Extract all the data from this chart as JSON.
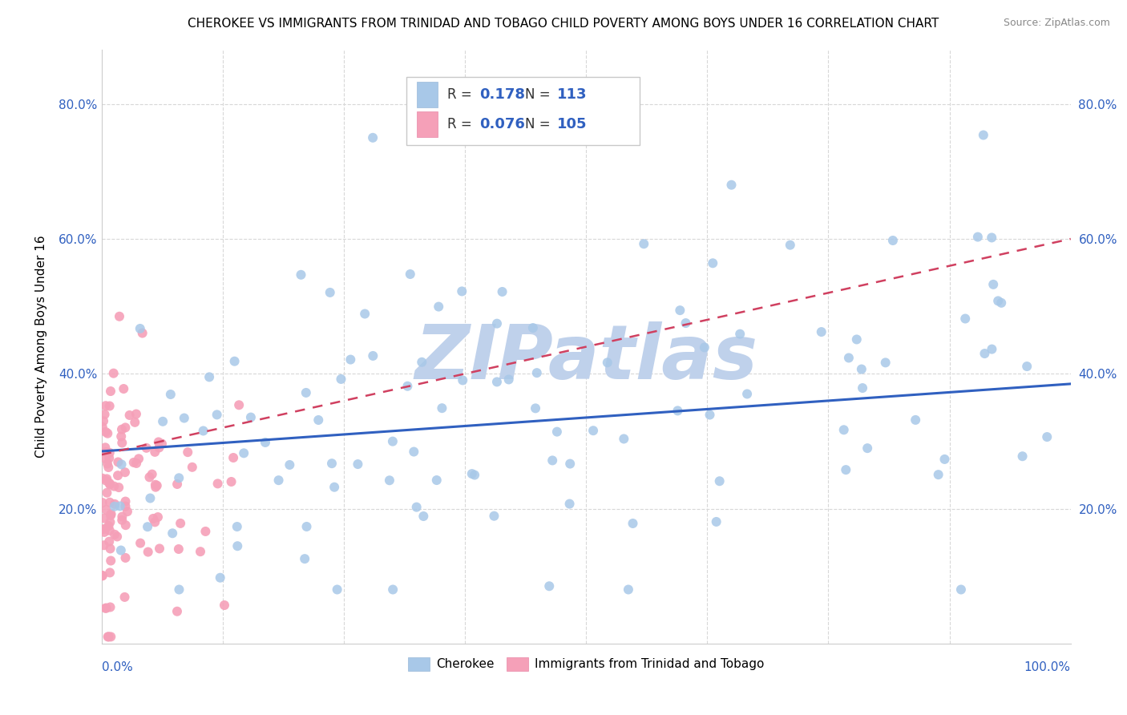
{
  "title": "CHEROKEE VS IMMIGRANTS FROM TRINIDAD AND TOBAGO CHILD POVERTY AMONG BOYS UNDER 16 CORRELATION CHART",
  "source": "Source: ZipAtlas.com",
  "ylabel": "Child Poverty Among Boys Under 16",
  "xlim": [
    0.0,
    1.0
  ],
  "ylim": [
    0.0,
    0.88
  ],
  "cherokee_R": 0.178,
  "cherokee_N": 113,
  "immigrant_R": 0.076,
  "immigrant_N": 105,
  "cherokee_color": "#a8c8e8",
  "immigrant_color": "#f5a0b8",
  "cherokee_line_color": "#3060c0",
  "immigrant_line_color": "#d04060",
  "label_color": "#3060c0",
  "watermark": "ZIPatlas",
  "watermark_color_r": 0.75,
  "watermark_color_g": 0.82,
  "watermark_color_b": 0.92,
  "background_color": "#ffffff",
  "grid_color": "#d8d8d8",
  "legend_text_color": "#3060c0",
  "legend_label_color": "#333333"
}
